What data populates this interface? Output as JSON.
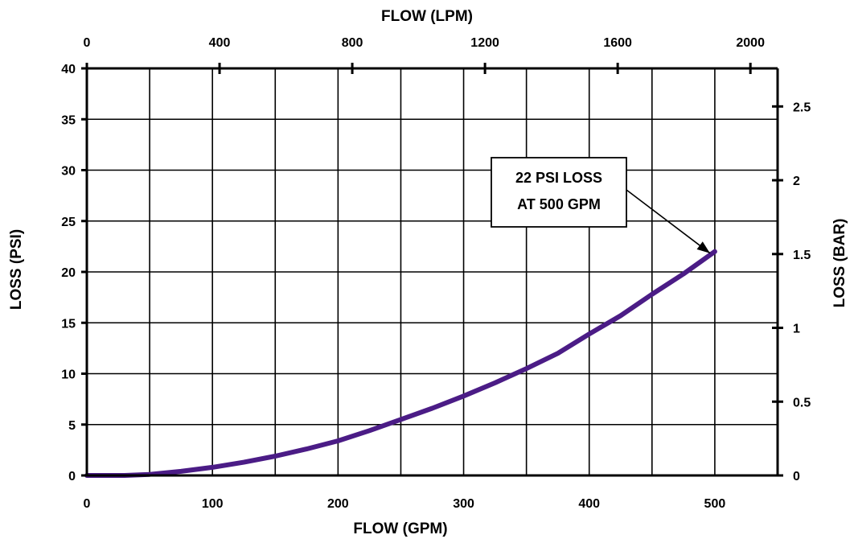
{
  "chart_data": {
    "type": "line",
    "x_bottom": {
      "label": "FLOW (GPM)",
      "range": [
        0,
        550
      ],
      "ticks": [
        0,
        100,
        200,
        300,
        400,
        500
      ],
      "tick_labels": [
        "0",
        "100",
        "200",
        "300",
        "400",
        "500"
      ]
    },
    "x_top": {
      "label": "FLOW (LPM)",
      "ticks": [
        0,
        400,
        800,
        1200,
        1600,
        2000
      ],
      "tick_labels": [
        "0",
        "400",
        "800",
        "1200",
        "1600",
        "2000"
      ]
    },
    "y_left": {
      "label": "LOSS (PSI)",
      "range": [
        0,
        40
      ],
      "ticks": [
        0,
        5,
        10,
        15,
        20,
        25,
        30,
        35,
        40
      ],
      "tick_labels": [
        "0",
        "5",
        "10",
        "15",
        "20",
        "25",
        "30",
        "35",
        "40"
      ]
    },
    "y_right": {
      "label": "LOSS (BAR)",
      "ticks": [
        0,
        0.5,
        1,
        1.5,
        2,
        2.5
      ],
      "tick_labels": [
        "0",
        "0.5",
        "1",
        "1.5",
        "2",
        "2.5"
      ]
    },
    "grid": true,
    "series": [
      {
        "color": "#4b1c86",
        "x": [
          0,
          30,
          50,
          75,
          100,
          125,
          150,
          175,
          200,
          225,
          250,
          275,
          300,
          325,
          350,
          375,
          400,
          425,
          450,
          475,
          500
        ],
        "y": [
          0,
          0,
          0.1,
          0.4,
          0.8,
          1.3,
          1.9,
          2.6,
          3.4,
          4.4,
          5.5,
          6.6,
          7.8,
          9.1,
          10.5,
          12.0,
          13.9,
          15.7,
          17.8,
          19.8,
          22.0
        ]
      }
    ],
    "annotation": {
      "lines": [
        "22 PSI LOSS",
        "AT 500 GPM"
      ],
      "target": {
        "x": 500,
        "y": 22
      }
    }
  }
}
